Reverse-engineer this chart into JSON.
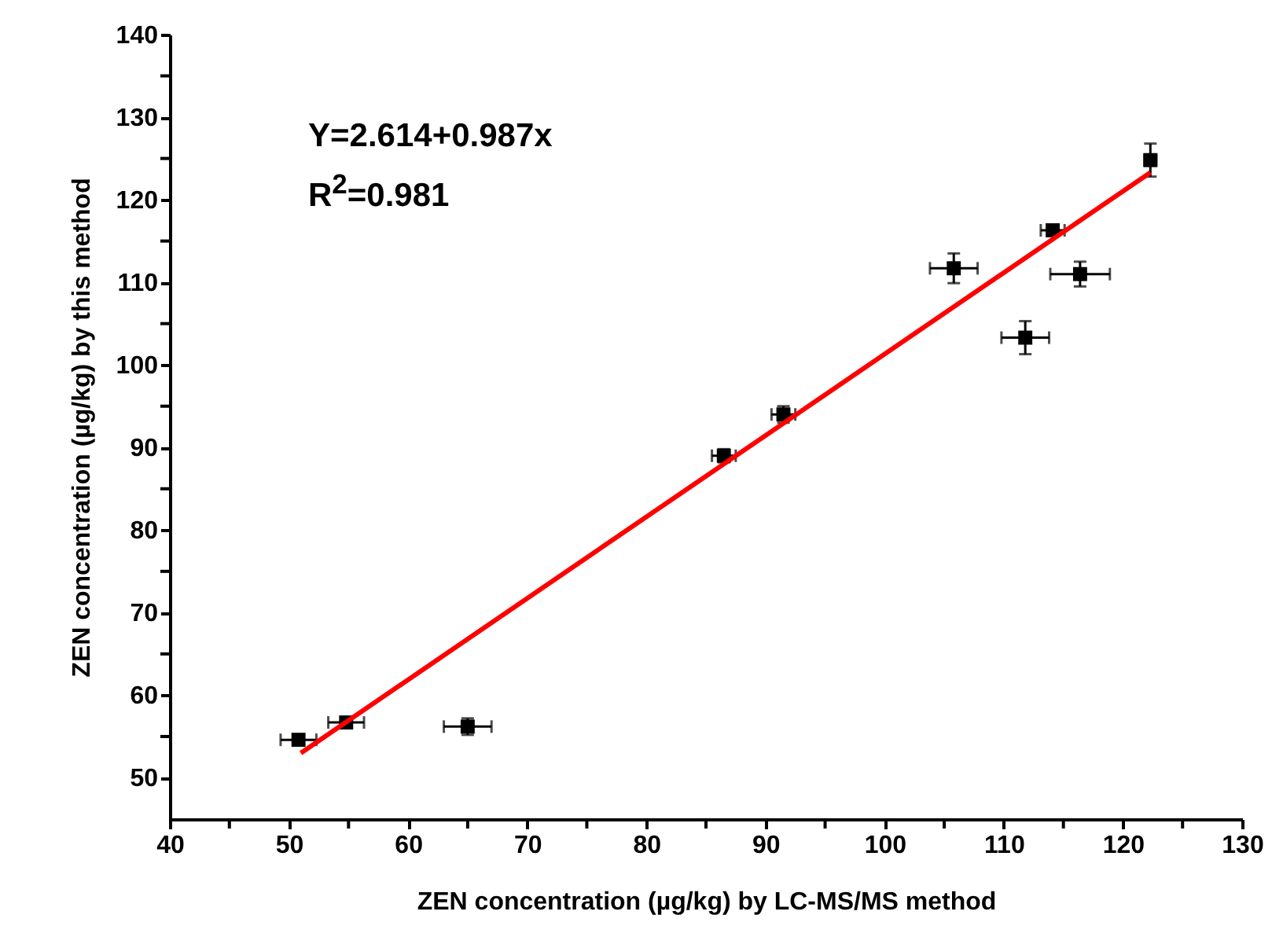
{
  "chart_data": {
    "type": "scatter",
    "xlabel": "ZEN concentration (µg/kg) by LC-MS/MS method",
    "ylabel": "ZEN concentration (µg/kg) by this method",
    "annotations": [
      "Y=2.614+0.987x",
      "R$^{2}$=0.981"
    ],
    "xlim": [
      40,
      130
    ],
    "ylim": [
      45,
      140
    ],
    "xticks": [
      40,
      {
        "value": 45,
        "label": null
      },
      50,
      {
        "value": 55,
        "label": null
      },
      60,
      {
        "value": 65,
        "label": null
      },
      70,
      {
        "value": 75,
        "label": null
      },
      80,
      {
        "value": 85,
        "label": null
      },
      90,
      {
        "value": 95,
        "label": null
      },
      100,
      {
        "value": 105,
        "label": null
      },
      110,
      {
        "value": 115,
        "label": null
      },
      120,
      {
        "value": 125,
        "label": null
      },
      130
    ],
    "yticks": [
      50,
      {
        "value": 55,
        "label": null
      },
      60,
      {
        "value": 65,
        "label": null
      },
      70,
      {
        "value": 75,
        "label": null
      },
      80,
      {
        "value": 85,
        "label": null
      },
      90,
      {
        "value": 95,
        "label": null
      },
      100,
      {
        "value": 105,
        "label": null
      },
      110,
      {
        "value": 115,
        "label": null
      },
      120,
      {
        "value": 125,
        "label": null
      },
      130,
      {
        "value": 135,
        "label": null
      },
      140
    ],
    "grid": false,
    "marker": "square",
    "series": [
      {
        "type": "scatter",
        "color": "#000000",
        "x": [
          50.8,
          54.8,
          65.0,
          86.5,
          91.5,
          105.8,
          111.8,
          114.1,
          116.4,
          122.3
        ],
        "values": [
          54.6,
          56.7,
          56.2,
          89.0,
          94.0,
          111.7,
          103.3,
          116.3,
          111.0,
          124.8
        ],
        "xerrors": [
          1.5,
          1.5,
          2,
          1,
          1,
          2,
          2,
          1,
          2.5,
          0.5
        ],
        "errors": [
          0.5,
          0.5,
          1,
          0.8,
          1,
          1.8,
          2,
          0.5,
          1.5,
          2
        ]
      },
      {
        "type": "line",
        "color": "#ff0000",
        "line_style": "solid",
        "marker": "none",
        "x": [
          51,
          122.3
        ],
        "values": [
          53.0,
          123.3
        ]
      }
    ]
  }
}
